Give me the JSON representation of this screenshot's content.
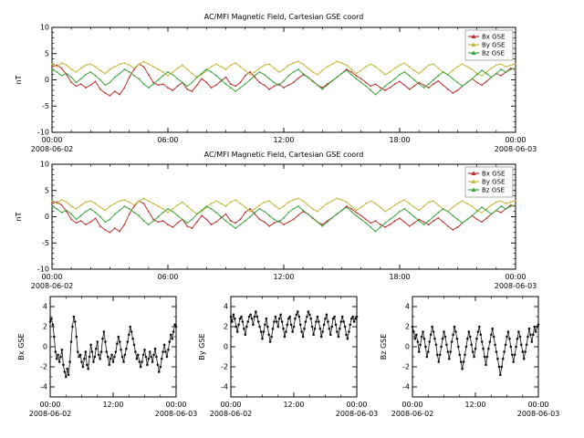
{
  "figure": {
    "background": "#ffffff",
    "top_title": "AC/MFI  Magnetic Field, Cartesian GSE coord",
    "mid_title": "AC/MFI  Magnetic Field, Cartesian GSE coord",
    "date_start": "2008-06-02",
    "date_end": "2008-06-03"
  },
  "colors": {
    "bx": "#b83232",
    "by": "#c2b83c",
    "bz": "#3da33d",
    "mono": "#111111"
  },
  "series": {
    "bx": [
      2.5,
      2.8,
      2.2,
      1.0,
      -0.5,
      -1.2,
      -0.8,
      -1.5,
      -1.0,
      -0.3,
      -1.8,
      -2.5,
      -3.0,
      -2.2,
      -2.8,
      -1.5,
      0.5,
      2.0,
      3.0,
      2.5,
      1.0,
      -0.5,
      -1.0,
      -0.8,
      -1.5,
      -2.0,
      -1.2,
      -0.5,
      -1.8,
      -2.2,
      -1.0,
      0.2,
      -0.5,
      -1.5,
      -1.0,
      -0.2,
      0.5,
      -0.8,
      -1.2,
      -0.5,
      0.8,
      1.5,
      0.5,
      -0.5,
      -1.0,
      -1.8,
      -1.2,
      -0.8,
      -1.5,
      -1.0,
      -0.5,
      0.3,
      1.0,
      0.5,
      -0.3,
      -1.0,
      -1.5,
      -0.8,
      -0.2,
      0.5,
      1.2,
      2.0,
      1.5,
      0.8,
      0.2,
      -0.5,
      -1.2,
      -0.8,
      -1.5,
      -2.0,
      -1.5,
      -0.8,
      -0.3,
      -1.0,
      -1.8,
      -1.2,
      -0.5,
      -1.0,
      -1.5,
      -0.8,
      -0.2,
      -1.0,
      -1.8,
      -2.5,
      -2.0,
      -1.2,
      -0.5,
      0.2,
      -0.5,
      -1.0,
      -0.3,
      0.5,
      1.2,
      0.8,
      1.5,
      2.2,
      2.0
    ],
    "by": [
      3.0,
      2.5,
      3.2,
      2.8,
      2.0,
      1.5,
      2.2,
      2.8,
      3.0,
      2.5,
      1.8,
      1.2,
      2.0,
      2.5,
      3.0,
      3.2,
      2.8,
      2.2,
      3.0,
      3.5,
      3.0,
      2.5,
      2.0,
      1.5,
      0.8,
      1.5,
      2.2,
      2.8,
      2.0,
      1.2,
      0.5,
      1.0,
      1.8,
      2.5,
      3.0,
      2.5,
      2.0,
      2.8,
      3.2,
      2.5,
      1.8,
      1.0,
      1.5,
      2.2,
      2.8,
      3.0,
      2.2,
      1.5,
      2.0,
      2.8,
      3.2,
      3.5,
      3.0,
      2.2,
      1.5,
      1.0,
      1.8,
      2.5,
      3.0,
      3.5,
      3.2,
      2.8,
      2.0,
      1.2,
      1.8,
      2.5,
      3.0,
      2.5,
      1.8,
      1.0,
      1.5,
      2.2,
      2.8,
      3.2,
      2.5,
      1.8,
      1.2,
      2.0,
      2.8,
      3.0,
      2.2,
      1.5,
      1.0,
      1.8,
      2.5,
      3.0,
      2.5,
      2.0,
      1.2,
      0.8,
      1.5,
      2.2,
      2.8,
      3.0,
      2.5,
      2.8,
      3.0
    ],
    "bz": [
      2.0,
      1.5,
      0.8,
      1.2,
      0.5,
      -0.5,
      0.2,
      1.0,
      1.5,
      0.8,
      0.0,
      -1.0,
      -0.5,
      0.5,
      1.2,
      2.0,
      1.5,
      0.8,
      0.2,
      -0.8,
      -1.5,
      -0.8,
      0.0,
      0.8,
      1.5,
      1.0,
      0.2,
      -0.5,
      -1.2,
      -0.5,
      0.5,
      1.2,
      2.0,
      1.5,
      0.8,
      0.0,
      -0.8,
      -1.5,
      -2.2,
      -1.5,
      -0.8,
      0.0,
      0.8,
      1.5,
      1.0,
      0.2,
      -0.5,
      -1.0,
      -0.2,
      0.8,
      1.5,
      2.0,
      1.2,
      0.5,
      -0.2,
      -1.0,
      -1.8,
      -1.0,
      -0.2,
      0.5,
      1.2,
      1.8,
      1.0,
      0.2,
      -0.5,
      -1.2,
      -2.0,
      -2.8,
      -2.0,
      -1.2,
      -0.5,
      0.2,
      1.0,
      1.5,
      0.8,
      0.0,
      -0.8,
      -1.5,
      -0.8,
      0.0,
      0.8,
      1.5,
      1.0,
      0.2,
      -0.5,
      -1.2,
      -0.5,
      0.2,
      1.0,
      1.8,
      1.2,
      0.5,
      1.2,
      2.0,
      1.5,
      2.0,
      2.2
    ]
  },
  "chart_data": [
    {
      "id": "panel-top",
      "type": "line",
      "title": "AC/MFI  Magnetic Field, Cartesian GSE coord",
      "ylabel": "nT",
      "ylim": [
        -10,
        10
      ],
      "yticks": [
        -10,
        -5,
        0,
        5,
        10
      ],
      "yminor": 1,
      "xlim_hours": [
        0,
        24
      ],
      "xminor": 1,
      "xticks": [
        {
          "hour": 0,
          "label": "00:00",
          "date": "2008-06-02"
        },
        {
          "hour": 6,
          "label": "06:00"
        },
        {
          "hour": 12,
          "label": "12:00"
        },
        {
          "hour": 18,
          "label": "18:00"
        },
        {
          "hour": 24,
          "label": "00:00",
          "date": "2008-06-03"
        }
      ],
      "plots": [
        {
          "series": "bx",
          "color": "#b83232",
          "lw": 1,
          "markers": false
        },
        {
          "series": "by",
          "color": "#c2b83c",
          "lw": 1,
          "markers": false
        },
        {
          "series": "bz",
          "color": "#3da33d",
          "lw": 1,
          "markers": false
        }
      ],
      "legend": [
        {
          "label": "Bx  GSE",
          "color": "#b83232"
        },
        {
          "label": "By  GSE",
          "color": "#c2b83c"
        },
        {
          "label": "Bz  GSE",
          "color": "#3da33d"
        }
      ]
    },
    {
      "id": "panel-mid",
      "type": "line",
      "title": "AC/MFI  Magnetic Field, Cartesian GSE coord",
      "ylabel": "nT",
      "ylim": [
        -10,
        10
      ],
      "yticks": [
        -10,
        -5,
        0,
        5,
        10
      ],
      "yminor": 1,
      "xlim_hours": [
        0,
        24
      ],
      "xminor": 1,
      "xticks": [
        {
          "hour": 0,
          "label": "00:00",
          "date": "2008-06-02"
        },
        {
          "hour": 6,
          "label": "06:00"
        },
        {
          "hour": 12,
          "label": "12:00"
        },
        {
          "hour": 18,
          "label": "18:00"
        },
        {
          "hour": 24,
          "label": "00:00",
          "date": "2008-06-03"
        }
      ],
      "plots": [
        {
          "series": "bx",
          "color": "#b83232",
          "lw": 1,
          "markers": false
        },
        {
          "series": "by",
          "color": "#c2b83c",
          "lw": 1,
          "markers": false
        },
        {
          "series": "bz",
          "color": "#3da33d",
          "lw": 1,
          "markers": false
        }
      ],
      "legend": [
        {
          "label": "Bx  GSE",
          "color": "#b83232"
        },
        {
          "label": "By  GSE",
          "color": "#c2b83c"
        },
        {
          "label": "Bz  GSE",
          "color": "#3da33d"
        }
      ]
    },
    {
      "id": "panel-bx",
      "type": "line",
      "ylabel": "Bx GSE",
      "ylim": [
        -5,
        5
      ],
      "yticks": [
        -4,
        -2,
        0,
        2,
        4
      ],
      "yminor": 1,
      "xlim_hours": [
        0,
        24
      ],
      "xminor": 3,
      "xticks": [
        {
          "hour": 0,
          "label": "00:00",
          "date": "2008-06-02"
        },
        {
          "hour": 12,
          "label": "12:00"
        },
        {
          "hour": 24,
          "label": "00:00",
          "date": "2008-06-03"
        }
      ],
      "plots": [
        {
          "series": "bx",
          "color": "#111111",
          "lw": 0.8,
          "markers": true
        }
      ]
    },
    {
      "id": "panel-by",
      "type": "line",
      "ylabel": "By GSE",
      "ylim": [
        -5,
        5
      ],
      "yticks": [
        -4,
        -2,
        0,
        2,
        4
      ],
      "yminor": 1,
      "xlim_hours": [
        0,
        24
      ],
      "xminor": 3,
      "xticks": [
        {
          "hour": 0,
          "label": "00:00",
          "date": "2008-06-02"
        },
        {
          "hour": 12,
          "label": "12:00"
        },
        {
          "hour": 24,
          "label": "00:00",
          "date": "2008-06-03"
        }
      ],
      "plots": [
        {
          "series": "by",
          "color": "#111111",
          "lw": 0.8,
          "markers": true
        }
      ]
    },
    {
      "id": "panel-bz",
      "type": "line",
      "ylabel": "Bz GSE",
      "ylim": [
        -5,
        5
      ],
      "yticks": [
        -4,
        -2,
        0,
        2,
        4
      ],
      "yminor": 1,
      "xlim_hours": [
        0,
        24
      ],
      "xminor": 3,
      "xticks": [
        {
          "hour": 0,
          "label": "00:00",
          "date": "2008-06-02"
        },
        {
          "hour": 12,
          "label": "12:00"
        },
        {
          "hour": 24,
          "label": "00:00",
          "date": "2008-06-03"
        }
      ],
      "plots": [
        {
          "series": "bz",
          "color": "#111111",
          "lw": 0.8,
          "markers": true
        }
      ]
    }
  ]
}
